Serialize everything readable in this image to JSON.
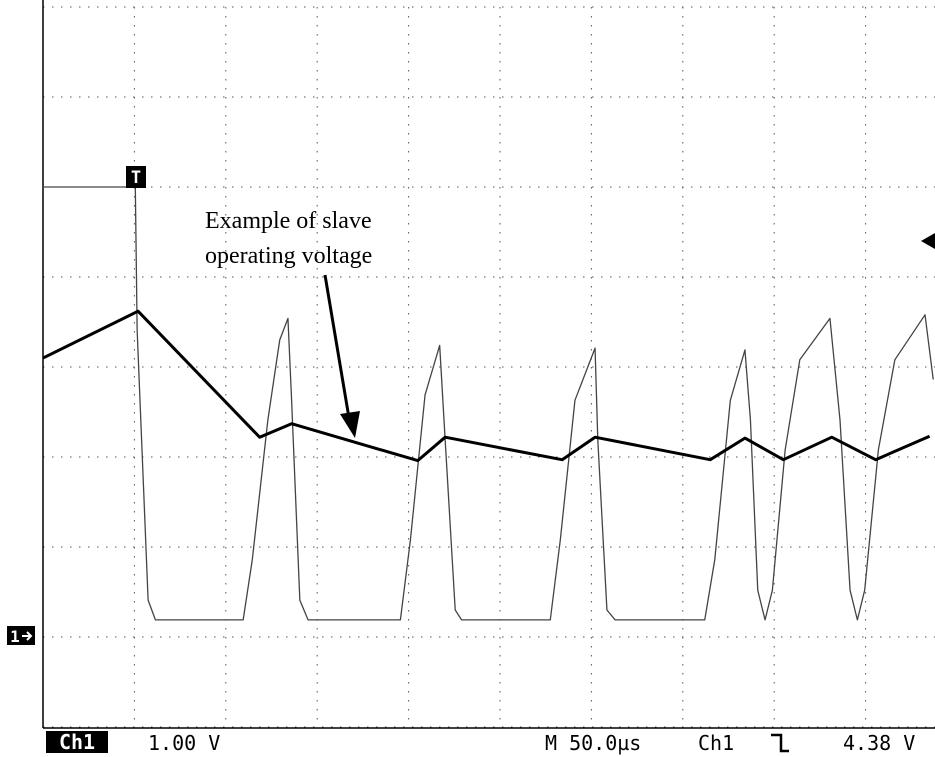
{
  "chart_data": {
    "type": "line",
    "xlim": [
      0,
      10
    ],
    "ylim": [
      -4,
      4
    ],
    "xticks": [
      0,
      1,
      2,
      3,
      4,
      5,
      6,
      7,
      8,
      9,
      10
    ],
    "yticks": [
      -4,
      -3,
      -2,
      -1,
      0,
      1,
      2,
      3,
      4
    ],
    "grid": true,
    "annotation": [
      "Example of slave",
      "operating voltage"
    ],
    "trigger_marker": "T",
    "channel_marker": "1",
    "status": {
      "channel": "Ch1",
      "scale": "1.00 V",
      "timebase": "M 50.0µs",
      "trigger_channel": "Ch1",
      "trigger_level": "4.38 V"
    },
    "series": [
      {
        "color": "#000000",
        "width": 3,
        "x": [
          0,
          1.04,
          2.37,
          2.72,
          4.1,
          4.4,
          5.68,
          6.04,
          7.3,
          7.68,
          8.1,
          8.63,
          9.11,
          9.7
        ],
        "values": [
          0.1,
          0.62,
          -0.78,
          -0.63,
          -1.04,
          -0.78,
          -1.03,
          -0.78,
          -1.03,
          -0.79,
          -1.03,
          -0.78,
          -1.03,
          -0.77
        ]
      },
      {
        "color": "#444444",
        "width": 1.3,
        "x": [
          0,
          1.01,
          1.03,
          1.15,
          1.23,
          2.19,
          2.29,
          2.46,
          2.59,
          2.68,
          2.72,
          2.81,
          2.9,
          3.91,
          4.02,
          4.18,
          4.34,
          4.4,
          4.51,
          4.58,
          5.55,
          5.66,
          5.82,
          6.04,
          6.07,
          6.17,
          6.26,
          7.24,
          7.35,
          7.52,
          7.68,
          7.74,
          7.82,
          7.9,
          7.98,
          8.12,
          8.28,
          8.61,
          8.72,
          8.83,
          8.91,
          8.99,
          9.14,
          9.32,
          9.65,
          9.74
        ],
        "values": [
          2.0,
          2.0,
          0.41,
          -2.59,
          -2.81,
          -2.81,
          -2.14,
          -0.59,
          0.3,
          0.54,
          -0.37,
          -2.59,
          -2.81,
          -2.81,
          -1.92,
          -0.31,
          0.24,
          -0.81,
          -2.7,
          -2.81,
          -2.81,
          -1.92,
          -0.37,
          0.21,
          -0.81,
          -2.7,
          -2.81,
          -2.81,
          -2.14,
          -0.37,
          0.19,
          -0.59,
          -2.48,
          -2.81,
          -2.48,
          -0.92,
          0.08,
          0.54,
          -0.59,
          -2.48,
          -2.81,
          -2.48,
          -0.92,
          0.08,
          0.58,
          -0.14
        ]
      }
    ]
  }
}
